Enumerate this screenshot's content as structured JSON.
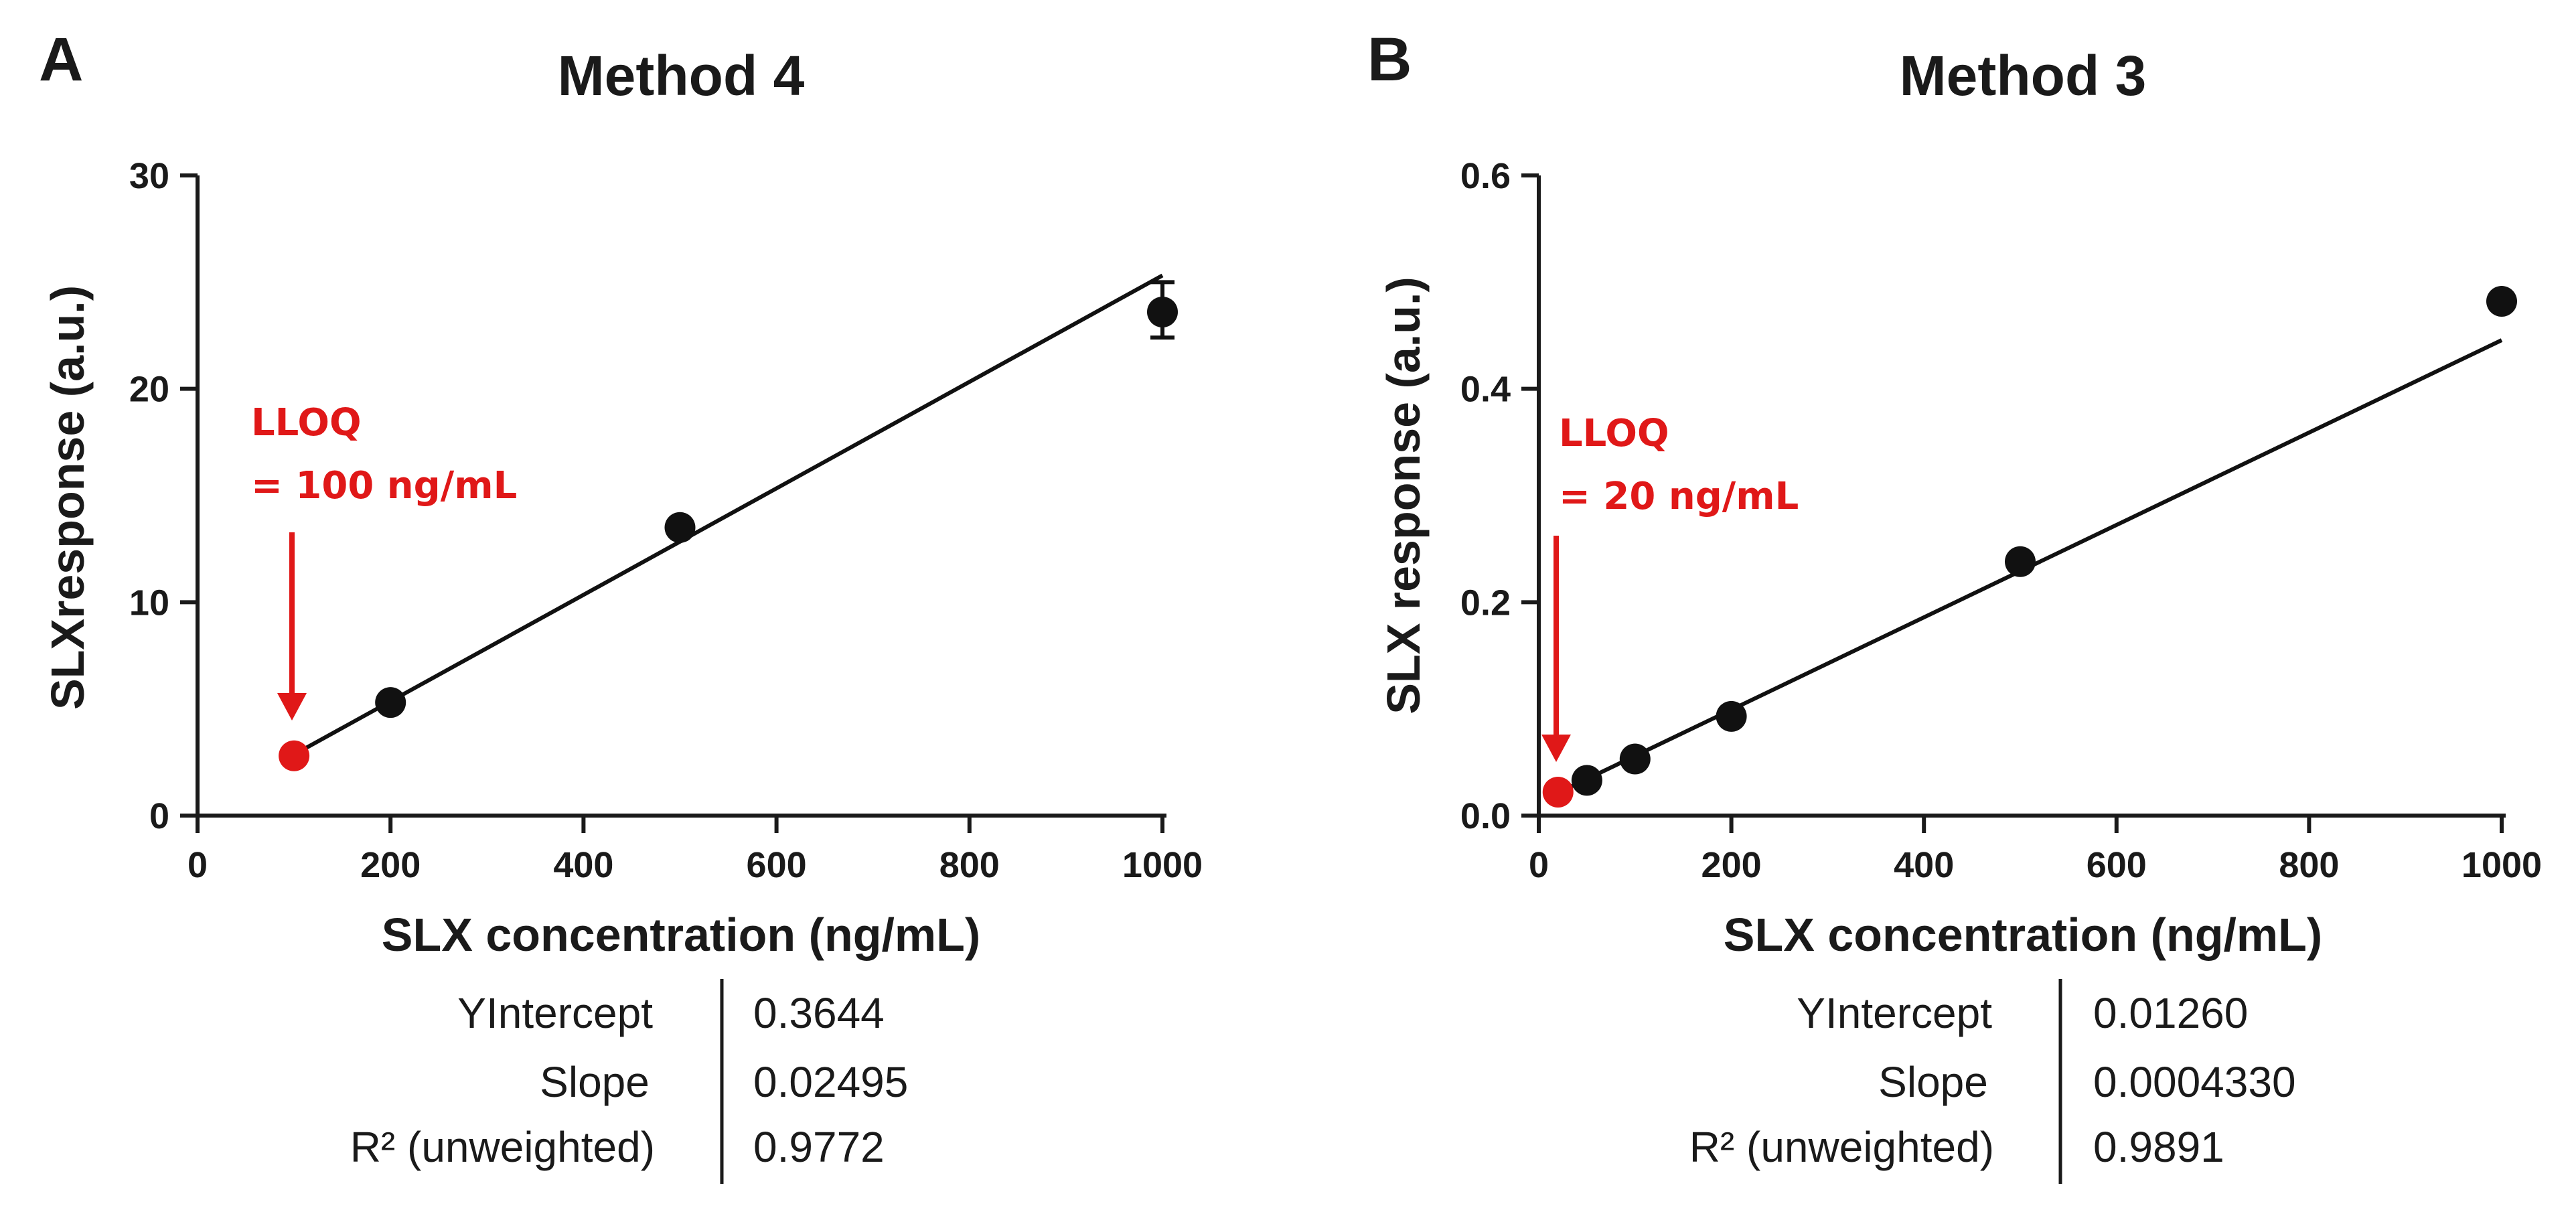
{
  "colors": {
    "text": "#1a1a1a",
    "data_point": "#111111",
    "lloq": "#e01818",
    "fit_line": "#111111"
  },
  "chart_data": [
    {
      "type": "scatter",
      "panel_label": "A",
      "title": "Method 4",
      "xlabel": "SLX concentration (ng/mL)",
      "ylabel": "SLXresponse (a.u.)",
      "xlim": [
        0,
        1000
      ],
      "ylim": [
        0,
        30
      ],
      "x_ticks": [
        0,
        200,
        400,
        600,
        800,
        1000
      ],
      "x_tick_labels": [
        "0",
        "200",
        "400",
        "600",
        "800",
        "1000"
      ],
      "y_ticks": [
        0,
        10,
        20,
        30
      ],
      "y_tick_labels": [
        "0",
        "10",
        "20",
        "30"
      ],
      "grid": false,
      "points": [
        {
          "x": 100,
          "y": 2.8,
          "highlight": true
        },
        {
          "x": 200,
          "y": 5.3
        },
        {
          "x": 500,
          "y": 13.5
        },
        {
          "x": 1000,
          "y": 23.6,
          "err_low": 22.4,
          "err_high": 25.0
        }
      ],
      "fit": {
        "slope": 0.02495,
        "intercept": 0.3644,
        "x_range": [
          100,
          1000
        ]
      },
      "lloq": {
        "x": 100,
        "line1": "LLOQ",
        "line2": "= 100 ng/mL"
      },
      "stats": [
        {
          "label": "YIntercept",
          "value": "0.3644"
        },
        {
          "label": "Slope",
          "value": "0.02495"
        },
        {
          "label": "R² (unweighted)",
          "value": "0.9772"
        }
      ]
    },
    {
      "type": "scatter",
      "panel_label": "B",
      "title": "Method 3",
      "xlabel": "SLX concentration (ng/mL)",
      "ylabel": "SLX response (a.u.)",
      "xlim": [
        0,
        1000
      ],
      "ylim": [
        0,
        0.6
      ],
      "x_ticks": [
        0,
        200,
        400,
        600,
        800,
        1000
      ],
      "x_tick_labels": [
        "0",
        "200",
        "400",
        "600",
        "800",
        "1000"
      ],
      "y_ticks": [
        0,
        0.2,
        0.4,
        0.6
      ],
      "y_tick_labels": [
        "0.0",
        "0.2",
        "0.4",
        "0.6"
      ],
      "grid": false,
      "points": [
        {
          "x": 20,
          "y": 0.022,
          "highlight": true
        },
        {
          "x": 50,
          "y": 0.033
        },
        {
          "x": 100,
          "y": 0.053
        },
        {
          "x": 200,
          "y": 0.093
        },
        {
          "x": 500,
          "y": 0.238
        },
        {
          "x": 1000,
          "y": 0.482
        }
      ],
      "fit": {
        "slope": 0.000433,
        "intercept": 0.0126,
        "x_range": [
          20,
          1000
        ]
      },
      "lloq": {
        "x": 20,
        "line1": "LLOQ",
        "line2": "= 20 ng/mL"
      },
      "stats": [
        {
          "label": "YIntercept",
          "value": "0.01260"
        },
        {
          "label": "Slope",
          "value": "0.0004330"
        },
        {
          "label": "R² (unweighted)",
          "value": "0.9891"
        }
      ]
    }
  ]
}
